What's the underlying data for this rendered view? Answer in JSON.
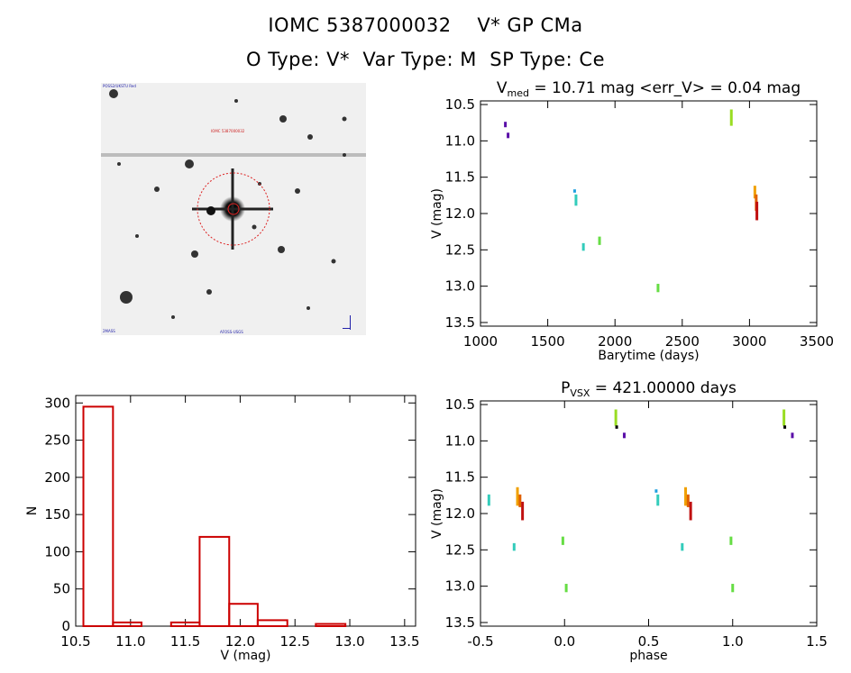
{
  "header": {
    "title": "IOMC 5387000032    V* GP CMa",
    "subtitle": "O Type: V*  Var Type: M  SP Type: Ce"
  },
  "stamp": {
    "labels": [
      "POSS2/UKSTU Red",
      "IOMC 5387000032",
      "2MASS",
      "AFOSS-USGS"
    ]
  },
  "colors": {
    "histogram": "#cc0000",
    "stamp_circle": "#dd2222",
    "points": [
      "#5a0fa8",
      "#1fa0e0",
      "#33ccbb",
      "#66dd44",
      "#99dd22",
      "#f0a000",
      "#e06000",
      "#c01010",
      "#000000"
    ]
  },
  "chart_data": [
    {
      "type": "scatter",
      "title_main": "V",
      "title_sub": "med",
      "title_rest": " = 10.71 mag <err_V> = 0.04 mag",
      "xlabel": "Barytime (days)",
      "ylabel": "V (mag)",
      "xlim": [
        1000,
        3500
      ],
      "ylim": [
        13.55,
        10.45
      ],
      "xticks": [
        "1000",
        "1500",
        "2000",
        "2500",
        "3000",
        "3500"
      ],
      "yticks": [
        "10.5",
        "11.0",
        "11.5",
        "12.0",
        "12.5",
        "13.0",
        "13.5"
      ],
      "groups": [
        {
          "x": 1185,
          "y": [
            10.75,
            10.8
          ],
          "color": "#5a0fa8"
        },
        {
          "x": 1205,
          "y": [
            10.9,
            10.95
          ],
          "color": "#5a0fa8"
        },
        {
          "x": 1700,
          "y": [
            11.68,
            11.7
          ],
          "color": "#1fa0e0"
        },
        {
          "x": 1710,
          "y": [
            11.75,
            11.88
          ],
          "color": "#33ccbb"
        },
        {
          "x": 1765,
          "y": [
            12.42,
            12.5
          ],
          "color": "#33ccbb"
        },
        {
          "x": 1885,
          "y": [
            12.33,
            12.42
          ],
          "color": "#66dd44"
        },
        {
          "x": 2320,
          "y": [
            12.98,
            13.07
          ],
          "color": "#66dd44"
        },
        {
          "x": 2865,
          "y": [
            10.58,
            10.78
          ],
          "color": "#99dd22"
        },
        {
          "x": 3040,
          "y": [
            11.63,
            11.78
          ],
          "color": "#f0a000"
        },
        {
          "x": 3050,
          "y": [
            11.75,
            11.95
          ],
          "color": "#e06000"
        },
        {
          "x": 3055,
          "y": [
            11.85,
            12.08
          ],
          "color": "#c01010"
        }
      ]
    },
    {
      "type": "bar",
      "xlabel": "V (mag)",
      "ylabel": "N",
      "xlim": [
        10.5,
        13.6
      ],
      "ylim": [
        0,
        310
      ],
      "xticks": [
        "10.5",
        "11.0",
        "11.5",
        "12.0",
        "12.5",
        "13.0",
        "13.5"
      ],
      "yticks": [
        "0",
        "50",
        "100",
        "150",
        "200",
        "250",
        "300"
      ],
      "bin_edges": [
        10.57,
        10.84,
        11.1,
        11.37,
        11.63,
        11.9,
        12.16,
        12.43,
        12.69,
        12.96,
        13.22
      ],
      "values": [
        295,
        5,
        0,
        5,
        120,
        30,
        8,
        0,
        3,
        0
      ]
    },
    {
      "type": "scatter",
      "title_main": "P",
      "title_sub": "VSX",
      "title_rest": " = 421.00000 days",
      "xlabel": "phase",
      "ylabel": "V (mag)",
      "xlim": [
        -0.5,
        1.5
      ],
      "ylim": [
        13.55,
        10.45
      ],
      "xticks": [
        "-0.5",
        "0.0",
        "0.5",
        "1.0",
        "1.5"
      ],
      "yticks": [
        "10.5",
        "11.0",
        "11.5",
        "12.0",
        "12.5",
        "13.0",
        "13.5"
      ],
      "groups": [
        {
          "x": -0.45,
          "y": [
            11.75,
            11.88
          ],
          "color": "#33ccbb"
        },
        {
          "x": -0.3,
          "y": [
            12.42,
            12.5
          ],
          "color": "#33ccbb"
        },
        {
          "x": -0.28,
          "y": [
            11.65,
            11.88
          ],
          "color": "#f0a000"
        },
        {
          "x": -0.265,
          "y": [
            11.75,
            11.9
          ],
          "color": "#e06000"
        },
        {
          "x": -0.25,
          "y": [
            11.85,
            12.08
          ],
          "color": "#c01010"
        },
        {
          "x": -0.01,
          "y": [
            12.33,
            12.42
          ],
          "color": "#66dd44"
        },
        {
          "x": 0.01,
          "y": [
            12.98,
            13.07
          ],
          "color": "#66dd44"
        },
        {
          "x": 0.305,
          "y": [
            10.58,
            10.78
          ],
          "color": "#99dd22"
        },
        {
          "x": 0.31,
          "y": [
            10.8,
            10.82
          ],
          "color": "#000000"
        },
        {
          "x": 0.355,
          "y": [
            10.9,
            10.95
          ],
          "color": "#5a0fa8"
        },
        {
          "x": 0.545,
          "y": [
            11.68,
            11.7
          ],
          "color": "#1fa0e0"
        },
        {
          "x": 0.555,
          "y": [
            11.75,
            11.88
          ],
          "color": "#33ccbb"
        },
        {
          "x": 0.7,
          "y": [
            12.42,
            12.5
          ],
          "color": "#33ccbb"
        },
        {
          "x": 0.72,
          "y": [
            11.65,
            11.88
          ],
          "color": "#f0a000"
        },
        {
          "x": 0.735,
          "y": [
            11.75,
            11.9
          ],
          "color": "#e06000"
        },
        {
          "x": 0.75,
          "y": [
            11.85,
            12.08
          ],
          "color": "#c01010"
        },
        {
          "x": 0.99,
          "y": [
            12.33,
            12.42
          ],
          "color": "#66dd44"
        },
        {
          "x": 1.0,
          "y": [
            12.98,
            13.07
          ],
          "color": "#66dd44"
        },
        {
          "x": 1.305,
          "y": [
            10.58,
            10.78
          ],
          "color": "#99dd22"
        },
        {
          "x": 1.31,
          "y": [
            10.8,
            10.82
          ],
          "color": "#000000"
        },
        {
          "x": 1.355,
          "y": [
            10.9,
            10.95
          ],
          "color": "#5a0fa8"
        }
      ]
    }
  ]
}
